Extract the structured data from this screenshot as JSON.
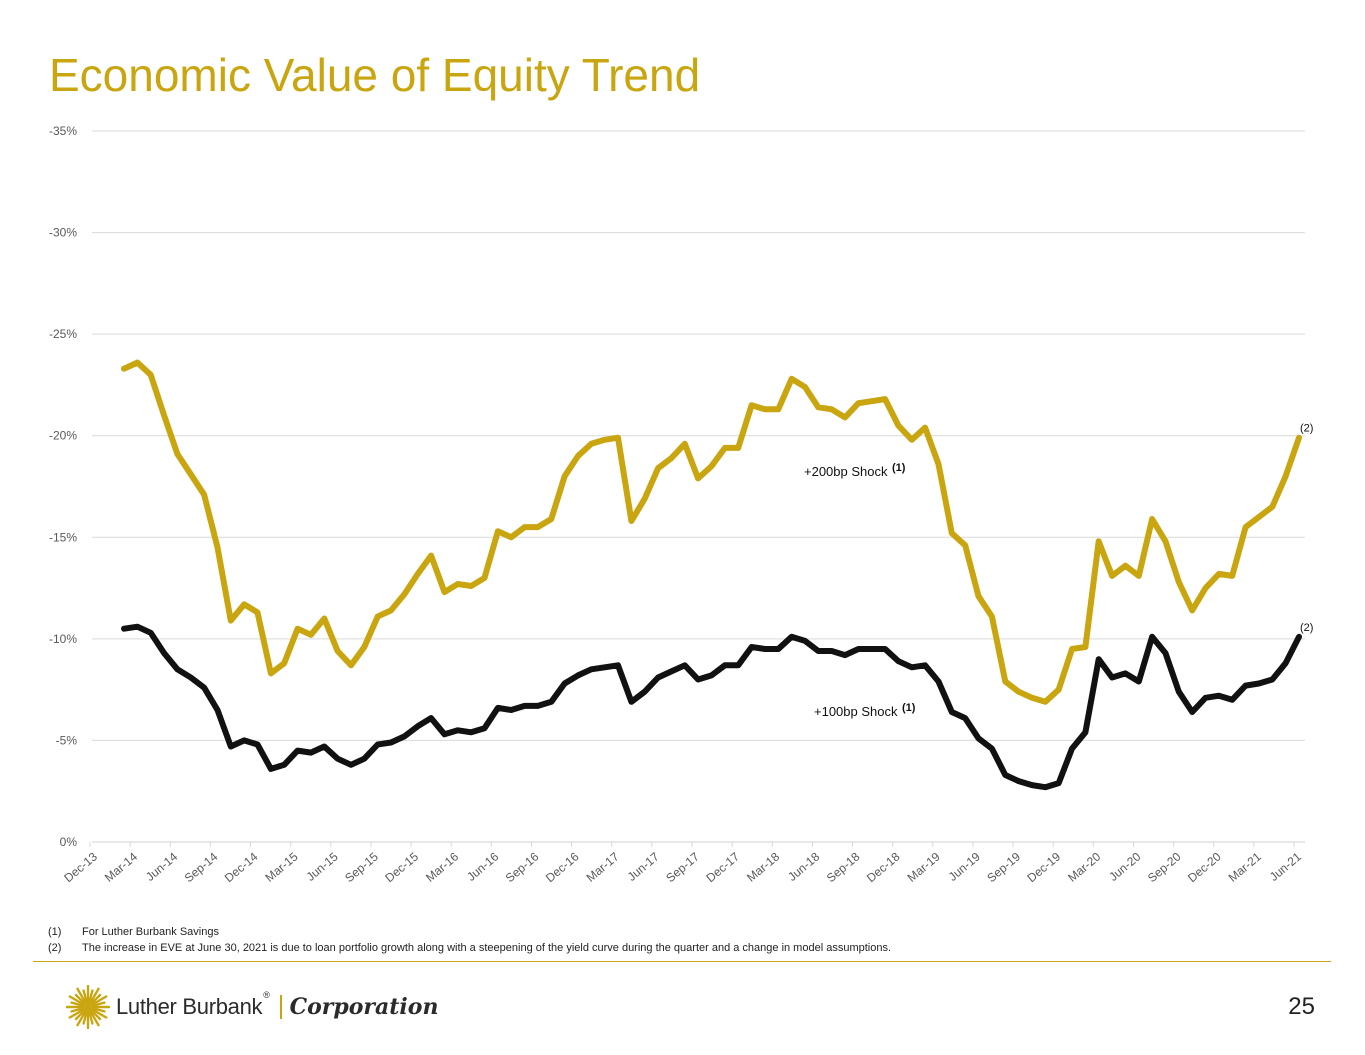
{
  "title": "Economic Value of Equity Trend",
  "page_number": "25",
  "footnotes": [
    {
      "num": "(1)",
      "text": "For Luther Burbank Savings"
    },
    {
      "num": "(2)",
      "text": "The increase in EVE at June 30, 2021 is due to loan portfolio growth along with a steepening of the yield curve during the quarter and a change in model assumptions."
    }
  ],
  "logo": {
    "name": "Luther Burbank",
    "registered": "®",
    "division": "Corporation",
    "icon": "sunburst-logo-icon"
  },
  "colors": {
    "accent": "#c9a50f",
    "series_200": "#c9a50f",
    "series_100": "#111111",
    "grid": "#d9d9d9"
  },
  "chart_data": {
    "type": "line",
    "title": "",
    "xlabel": "",
    "ylabel": "",
    "ylim": [
      0,
      -35
    ],
    "y_ticks": [
      "0%",
      "-5%",
      "-10%",
      "-15%",
      "-20%",
      "-25%",
      "-30%",
      "-35%"
    ],
    "grid": true,
    "x_tick_labels": [
      "Dec-13",
      "Mar-14",
      "Jun-14",
      "Sep-14",
      "Dec-14",
      "Mar-15",
      "Jun-15",
      "Sep-15",
      "Dec-15",
      "Mar-16",
      "Jun-16",
      "Sep-16",
      "Dec-16",
      "Mar-17",
      "Jun-17",
      "Sep-17",
      "Dec-17",
      "Mar-18",
      "Jun-18",
      "Sep-18",
      "Dec-18",
      "Mar-19",
      "Jun-19",
      "Sep-19",
      "Dec-19",
      "Mar-20",
      "Jun-20",
      "Sep-20",
      "Dec-20",
      "Mar-21",
      "Jun-21"
    ],
    "x_start": "Jan-14",
    "x_end": "Jun-21",
    "series": [
      {
        "name": "+200bp Shock",
        "label": "+200bp Shock",
        "label_note": "(1)",
        "end_note": "(2)",
        "values": [
          -23.3,
          -23.6,
          -23.0,
          -21.0,
          -19.1,
          -18.1,
          -17.1,
          -14.5,
          -10.9,
          -11.7,
          -11.3,
          -8.3,
          -8.8,
          -10.5,
          -10.2,
          -11.0,
          -9.4,
          -8.7,
          -9.6,
          -11.1,
          -11.4,
          -12.2,
          -13.2,
          -14.1,
          -12.3,
          -12.7,
          -12.6,
          -13.0,
          -15.3,
          -15.0,
          -15.5,
          -15.5,
          -15.9,
          -18.0,
          -19.0,
          -19.6,
          -19.8,
          -19.9,
          -15.8,
          -16.9,
          -18.4,
          -18.9,
          -19.6,
          -17.9,
          -18.5,
          -19.4,
          -19.4,
          -21.5,
          -21.3,
          -21.3,
          -22.8,
          -22.4,
          -21.4,
          -21.3,
          -20.9,
          -21.6,
          -21.7,
          -21.8,
          -20.5,
          -19.8,
          -20.4,
          -18.6,
          -15.2,
          -14.6,
          -12.1,
          -11.1,
          -7.9,
          -7.4,
          -7.1,
          -6.9,
          -7.5,
          -9.5,
          -9.6,
          -14.8,
          -13.1,
          -13.6,
          -13.1,
          -15.9,
          -14.8,
          -12.8,
          -11.4,
          -12.5,
          -13.2,
          -13.1,
          -15.5,
          -16.0,
          -16.5,
          -18.0,
          -19.9
        ]
      },
      {
        "name": "+100bp Shock",
        "label": "+100bp Shock",
        "label_note": "(1)",
        "end_note": "(2)",
        "values": [
          -10.5,
          -10.6,
          -10.3,
          -9.3,
          -8.5,
          -8.1,
          -7.6,
          -6.5,
          -4.7,
          -5.0,
          -4.8,
          -3.6,
          -3.8,
          -4.5,
          -4.4,
          -4.7,
          -4.1,
          -3.8,
          -4.1,
          -4.8,
          -4.9,
          -5.2,
          -5.7,
          -6.1,
          -5.3,
          -5.5,
          -5.4,
          -5.6,
          -6.6,
          -6.5,
          -6.7,
          -6.7,
          -6.9,
          -7.8,
          -8.2,
          -8.5,
          -8.6,
          -8.7,
          -6.9,
          -7.4,
          -8.1,
          -8.4,
          -8.7,
          -8.0,
          -8.2,
          -8.7,
          -8.7,
          -9.6,
          -9.5,
          -9.5,
          -10.1,
          -9.9,
          -9.4,
          -9.4,
          -9.2,
          -9.5,
          -9.5,
          -9.5,
          -8.9,
          -8.6,
          -8.7,
          -7.9,
          -6.4,
          -6.1,
          -5.1,
          -4.6,
          -3.3,
          -3.0,
          -2.8,
          -2.7,
          -2.9,
          -4.6,
          -5.4,
          -9.0,
          -8.1,
          -8.3,
          -7.9,
          -10.1,
          -9.3,
          -7.4,
          -6.4,
          -7.1,
          -7.2,
          -7.0,
          -7.7,
          -7.8,
          -8.0,
          -8.8,
          -10.1
        ]
      }
    ]
  }
}
